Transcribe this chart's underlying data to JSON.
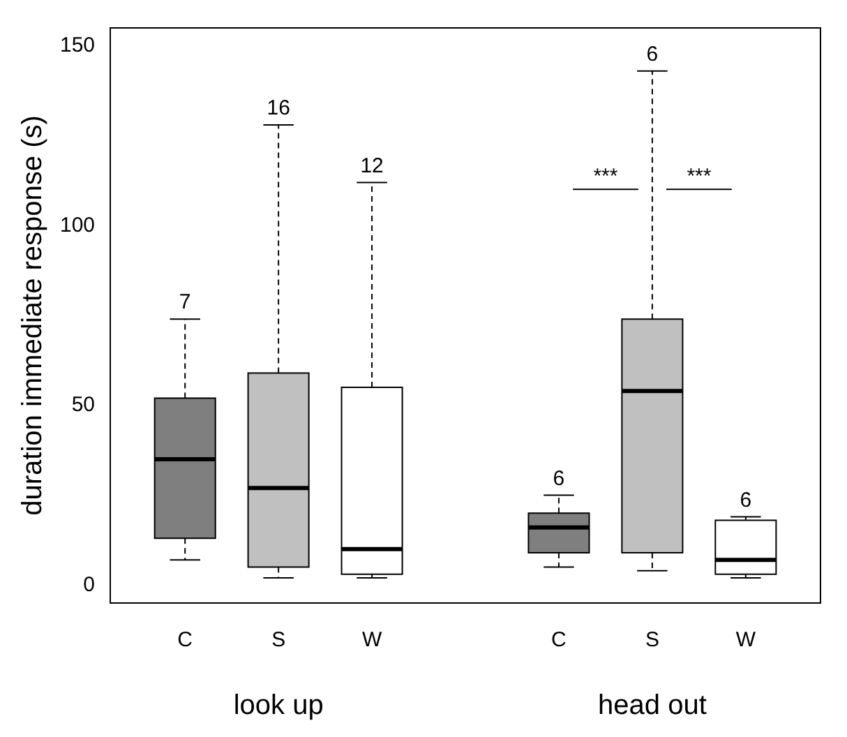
{
  "chart_data": {
    "type": "box",
    "ylabel": "duration immediate response (s)",
    "categories": [
      "C",
      "S",
      "W",
      null,
      "C",
      "S",
      "W"
    ],
    "colors": [
      "#7f7f7f",
      "#c0c0c0",
      "#ffffff",
      null,
      "#7f7f7f",
      "#c0c0c0",
      "#ffffff"
    ],
    "boxes": [
      {
        "low": 7,
        "q1": 13,
        "median": 35,
        "q3": 52,
        "high": 74
      },
      {
        "low": 2,
        "q1": 5,
        "median": 27,
        "q3": 59,
        "high": 128
      },
      {
        "low": 2,
        "q1": 3,
        "median": 10,
        "q3": 55,
        "high": 112
      },
      null,
      {
        "low": 5,
        "q1": 9,
        "median": 16,
        "q3": 20,
        "high": 25
      },
      {
        "low": 4,
        "q1": 9,
        "median": 54,
        "q3": 74,
        "high": 143
      },
      {
        "low": 2,
        "q1": 3,
        "median": 7,
        "q3": 18,
        "high": 19
      }
    ],
    "ylim": [
      -5,
      155
    ],
    "yticks": [
      0,
      50,
      100,
      150
    ],
    "grid": false,
    "legend": false,
    "annotations": [
      "7",
      "16",
      "12",
      "6",
      "6",
      "6",
      "***",
      "***",
      "look up",
      "head out"
    ]
  }
}
